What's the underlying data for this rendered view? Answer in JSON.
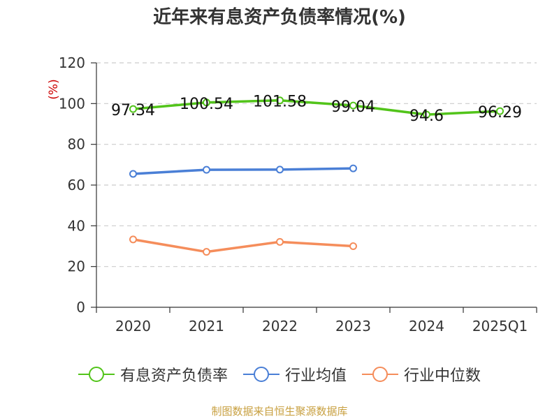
{
  "chart_data": {
    "type": "line",
    "title": "近年来有息资产负债率情况(%)",
    "ylabel": "(%)",
    "categories": [
      "2020",
      "2021",
      "2022",
      "2023",
      "2024",
      "2025Q1"
    ],
    "ylim": [
      0,
      120
    ],
    "yticks": [
      0,
      20,
      40,
      60,
      80,
      100,
      120
    ],
    "grid": true,
    "legend_position": "bottom",
    "series": [
      {
        "name": "有息资产负债率",
        "color": "#52c41a",
        "values": [
          97.34,
          100.54,
          101.58,
          99.04,
          94.6,
          96.29
        ],
        "labels": [
          "97.34",
          "100.54",
          "101.58",
          "99.04",
          "94.6",
          "96.29"
        ]
      },
      {
        "name": "行业均值",
        "color": "#4a7fd6",
        "values": [
          65.5,
          67.5,
          67.6,
          68.2,
          null,
          null
        ]
      },
      {
        "name": "行业中位数",
        "color": "#f58d5b",
        "values": [
          33.3,
          27.2,
          32.1,
          30.0,
          null,
          null
        ]
      }
    ]
  },
  "source": "制图数据来自恒生聚源数据库"
}
